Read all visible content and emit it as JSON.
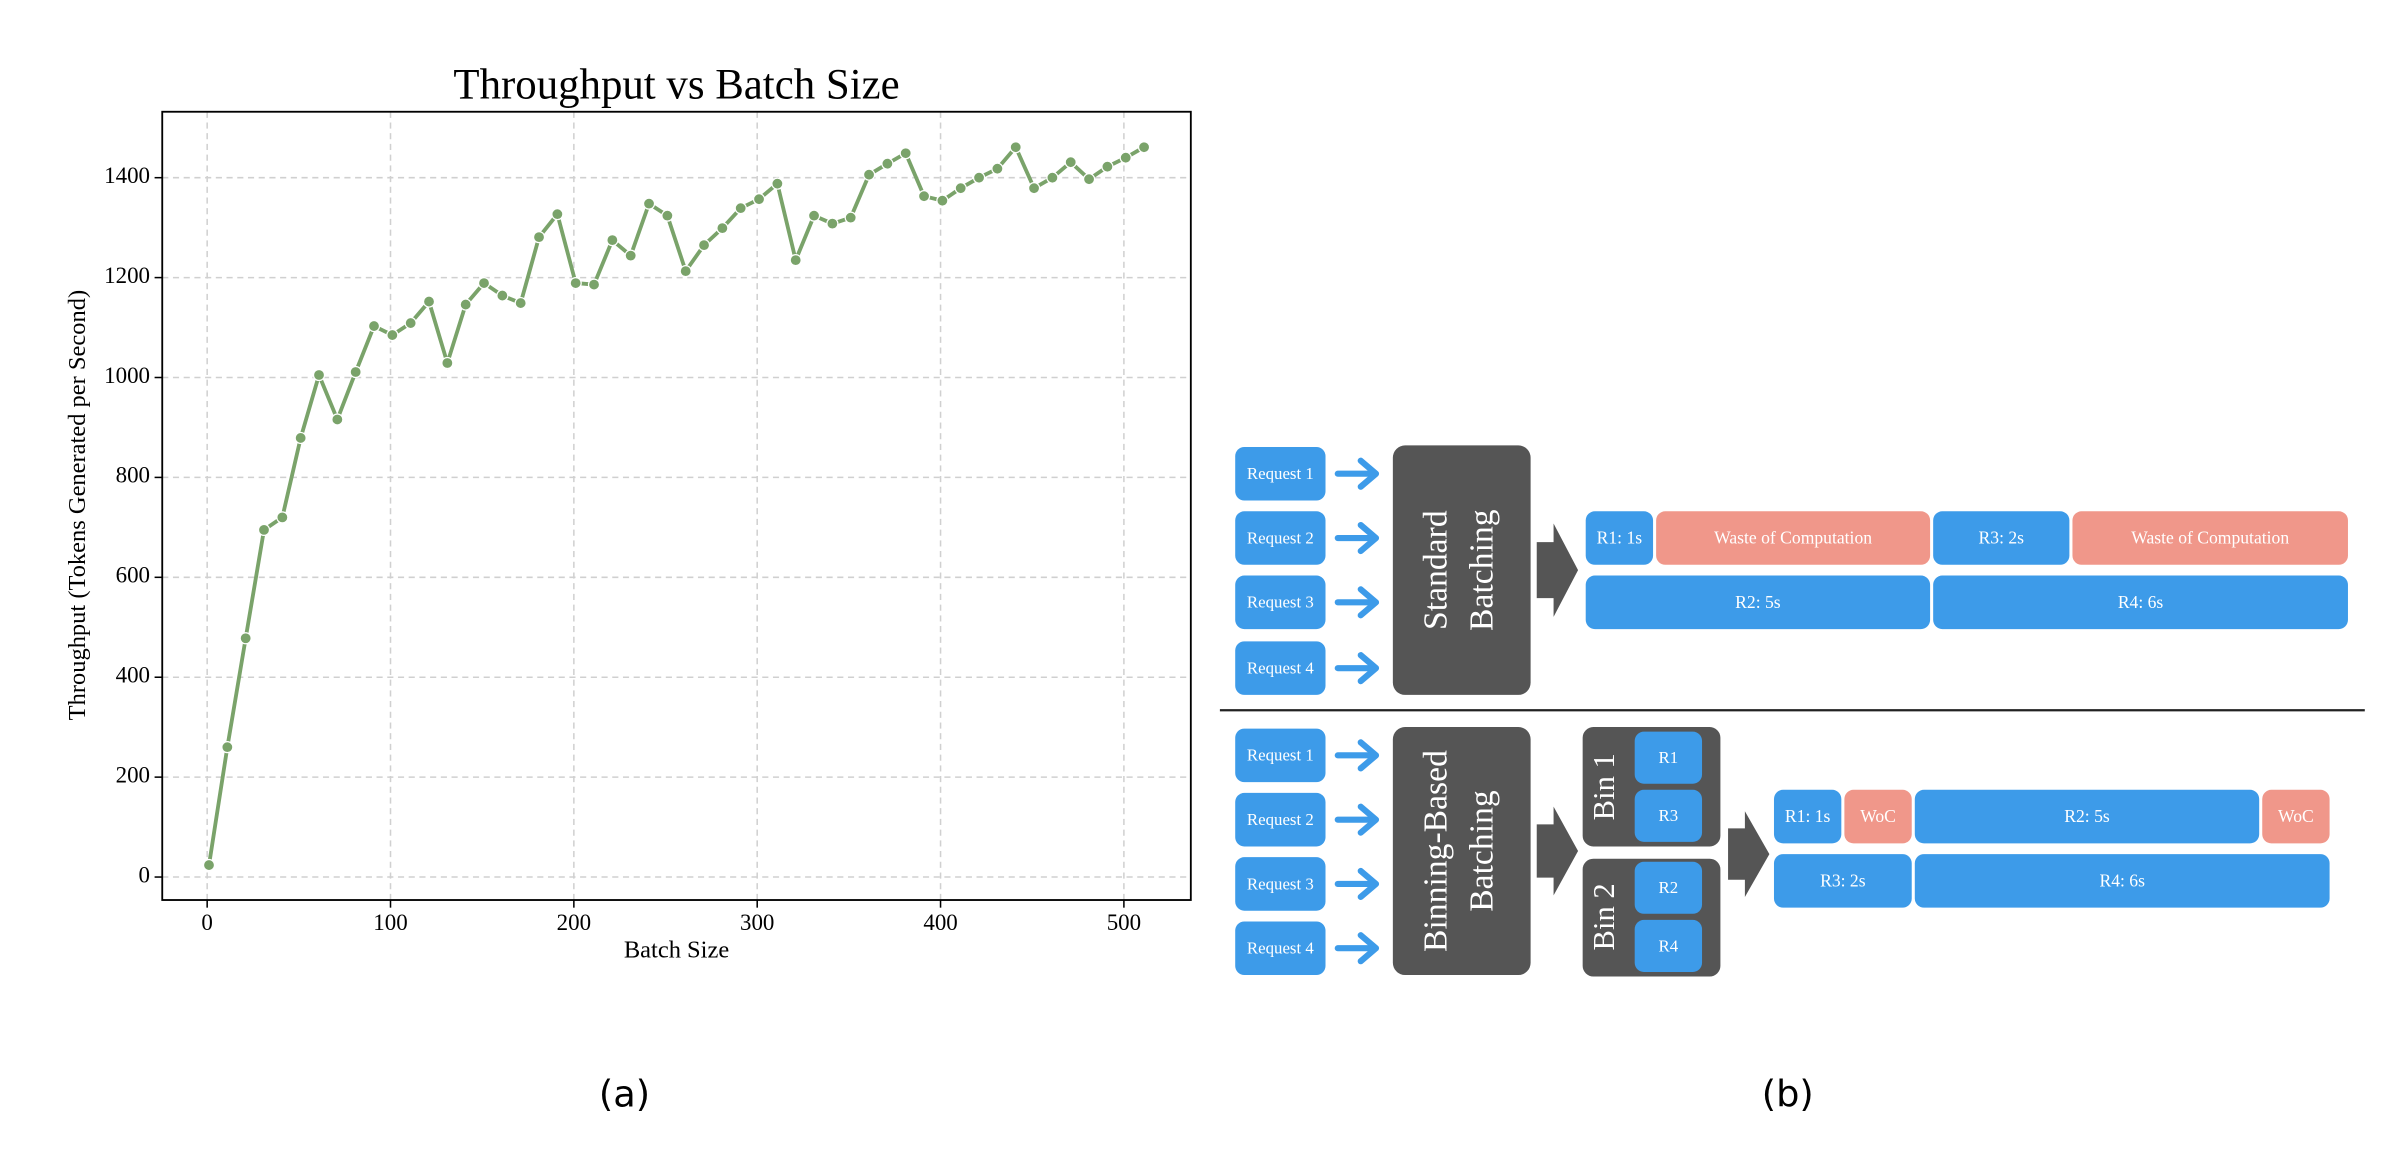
{
  "chart_data": {
    "type": "line",
    "title": "Throughput vs Batch Size",
    "x_label": "Batch Size",
    "y_label": "Throughput (Tokens Generated per Second)",
    "x": [
      1,
      11,
      21,
      31,
      41,
      51,
      61,
      71,
      81,
      91,
      101,
      111,
      121,
      131,
      141,
      151,
      161,
      171,
      181,
      191,
      201,
      211,
      221,
      231,
      241,
      251,
      261,
      271,
      281,
      291,
      301,
      311,
      321,
      331,
      341,
      351,
      361,
      371,
      381,
      391,
      401,
      411,
      421,
      431,
      441,
      451,
      461,
      471,
      481,
      491,
      501,
      511
    ],
    "values": [
      24,
      260,
      478,
      695,
      720,
      879,
      1005,
      916,
      1011,
      1103,
      1085,
      1109,
      1152,
      1029,
      1146,
      1189,
      1164,
      1149,
      1281,
      1327,
      1189,
      1186,
      1275,
      1244,
      1348,
      1324,
      1213,
      1265,
      1299,
      1339,
      1357,
      1388,
      1235,
      1324,
      1308,
      1320,
      1406,
      1428,
      1449,
      1363,
      1354,
      1379,
      1400,
      1418,
      1461,
      1379,
      1400,
      1431,
      1397,
      1422,
      1440,
      1461
    ],
    "color": "#7aa36a",
    "xlim": [
      -24.5,
      536.5
    ],
    "xticks": [
      0,
      100,
      200,
      300,
      400,
      500
    ],
    "ylim": [
      -46,
      1532
    ],
    "yticks": [
      0,
      200,
      400,
      600,
      800,
      1000,
      1200,
      1400
    ],
    "grid": true
  },
  "panel_labels": [
    "(a)",
    "(b)"
  ],
  "diagram": {
    "standard": {
      "requests": [
        "Request 1",
        "Request 2",
        "Request 3",
        "Request 4"
      ],
      "batcher": [
        "Standard",
        "Batching"
      ],
      "rows": [
        [
          "R1: 1s",
          "Waste of Computation",
          "R3: 2s",
          "Waste of Computation"
        ],
        [
          "R2: 5s",
          "R4: 6s"
        ]
      ]
    },
    "binning": {
      "requests": [
        "Request 1",
        "Request 2",
        "Request 3",
        "Request 4"
      ],
      "batcher": [
        "Binning-Based",
        "Batching"
      ],
      "bins": [
        {
          "label": "Bin 1",
          "items": [
            "R1",
            "R3"
          ]
        },
        {
          "label": "Bin 2",
          "items": [
            "R2",
            "R4"
          ]
        }
      ],
      "rows": [
        [
          "R1: 1s",
          "WoC",
          "R2: 5s",
          "WoC"
        ],
        [
          "R3: 2s",
          "R4: 6s"
        ]
      ]
    }
  }
}
